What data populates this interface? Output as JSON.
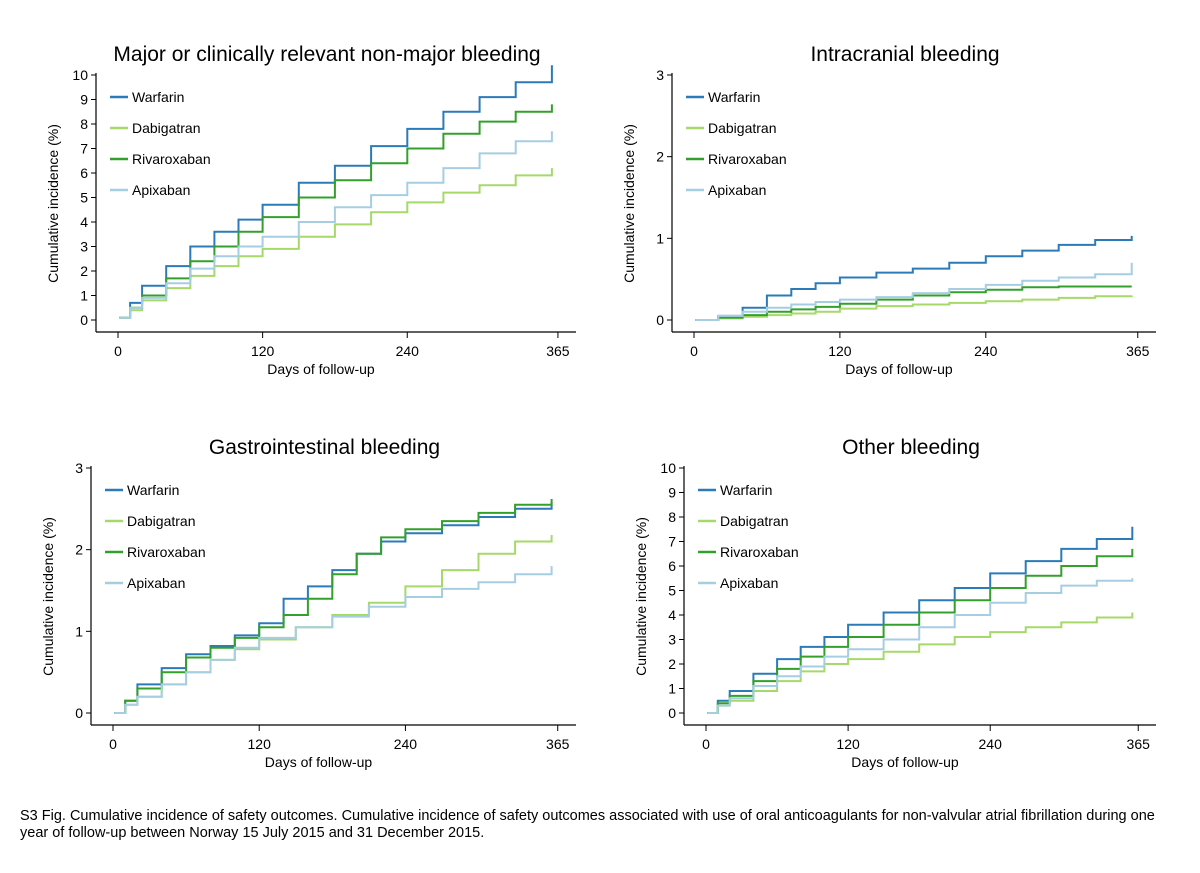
{
  "colors": {
    "warfarin": "#2b7bba",
    "dabigatran": "#a6d96a",
    "rivaroxaban": "#33a02c",
    "apixaban": "#a6cee3"
  },
  "chart_data": [
    {
      "type": "line",
      "title": "Major or clinically relevant non-major bleeding",
      "xlabel": "Days of follow-up",
      "ylabel": "Cumulative incidence (%)",
      "xlim": [
        0,
        365
      ],
      "ylim": [
        0,
        10
      ],
      "xticks": [
        "0",
        "120",
        "240",
        "365"
      ],
      "yticks": [
        "0",
        "1",
        "2",
        "3",
        "4",
        "5",
        "6",
        "7",
        "8",
        "9",
        "10"
      ],
      "legend_position": "top-left",
      "grid": false,
      "series": [
        {
          "name": "Warfarin",
          "color": "warfarin",
          "x": [
            1,
            10,
            20,
            40,
            60,
            80,
            100,
            120,
            150,
            180,
            210,
            240,
            270,
            300,
            330,
            360
          ],
          "y": [
            0.1,
            0.7,
            1.4,
            2.2,
            3.0,
            3.6,
            4.1,
            4.7,
            5.6,
            6.3,
            7.1,
            7.8,
            8.5,
            9.1,
            9.7,
            10.4
          ]
        },
        {
          "name": "Dabigatran",
          "color": "dabigatran",
          "x": [
            1,
            10,
            20,
            40,
            60,
            80,
            100,
            120,
            150,
            180,
            210,
            240,
            270,
            300,
            330,
            360
          ],
          "y": [
            0.1,
            0.4,
            0.8,
            1.3,
            1.8,
            2.2,
            2.6,
            2.9,
            3.4,
            3.9,
            4.4,
            4.8,
            5.2,
            5.5,
            5.9,
            6.2
          ]
        },
        {
          "name": "Rivaroxaban",
          "color": "rivaroxaban",
          "x": [
            1,
            10,
            20,
            40,
            60,
            80,
            100,
            120,
            150,
            180,
            210,
            240,
            270,
            300,
            330,
            360
          ],
          "y": [
            0.1,
            0.5,
            1.0,
            1.7,
            2.4,
            3.0,
            3.6,
            4.2,
            5.0,
            5.7,
            6.4,
            7.0,
            7.6,
            8.1,
            8.5,
            8.8
          ]
        },
        {
          "name": "Apixaban",
          "color": "apixaban",
          "x": [
            1,
            10,
            20,
            40,
            60,
            80,
            100,
            120,
            150,
            180,
            210,
            240,
            270,
            300,
            330,
            360
          ],
          "y": [
            0.1,
            0.5,
            0.9,
            1.5,
            2.1,
            2.6,
            3.0,
            3.4,
            4.0,
            4.6,
            5.1,
            5.6,
            6.2,
            6.8,
            7.3,
            7.7
          ]
        }
      ]
    },
    {
      "type": "line",
      "title": "Intracranial bleeding",
      "xlabel": "Days of follow-up",
      "ylabel": "Cumulative incidence (%)",
      "xlim": [
        0,
        365
      ],
      "ylim": [
        0,
        3
      ],
      "xticks": [
        "0",
        "120",
        "240",
        "365"
      ],
      "yticks": [
        "0",
        "1",
        "2",
        "3"
      ],
      "legend_position": "top-left",
      "grid": false,
      "series": [
        {
          "name": "Warfarin",
          "color": "warfarin",
          "x": [
            1,
            20,
            40,
            60,
            80,
            100,
            120,
            150,
            180,
            210,
            240,
            270,
            300,
            330,
            360
          ],
          "y": [
            0.0,
            0.05,
            0.15,
            0.3,
            0.38,
            0.45,
            0.52,
            0.58,
            0.63,
            0.7,
            0.78,
            0.85,
            0.92,
            0.98,
            1.03
          ]
        },
        {
          "name": "Dabigatran",
          "color": "dabigatran",
          "x": [
            1,
            20,
            40,
            60,
            80,
            100,
            120,
            150,
            180,
            210,
            240,
            270,
            300,
            330,
            360
          ],
          "y": [
            0.0,
            0.02,
            0.04,
            0.06,
            0.08,
            0.1,
            0.14,
            0.17,
            0.19,
            0.21,
            0.23,
            0.25,
            0.27,
            0.29,
            0.3
          ]
        },
        {
          "name": "Rivaroxaban",
          "color": "rivaroxaban",
          "x": [
            1,
            20,
            40,
            60,
            80,
            100,
            120,
            150,
            180,
            210,
            240,
            270,
            300,
            330,
            360
          ],
          "y": [
            0.0,
            0.03,
            0.06,
            0.1,
            0.13,
            0.16,
            0.2,
            0.25,
            0.3,
            0.34,
            0.37,
            0.4,
            0.41,
            0.41,
            0.41
          ]
        },
        {
          "name": "Apixaban",
          "color": "apixaban",
          "x": [
            1,
            20,
            40,
            60,
            80,
            100,
            120,
            150,
            180,
            210,
            240,
            270,
            300,
            330,
            360
          ],
          "y": [
            0.0,
            0.05,
            0.1,
            0.15,
            0.19,
            0.22,
            0.25,
            0.28,
            0.33,
            0.38,
            0.43,
            0.48,
            0.52,
            0.56,
            0.7
          ]
        }
      ]
    },
    {
      "type": "line",
      "title": "Gastrointestinal bleeding",
      "xlabel": "Days of follow-up",
      "ylabel": "Cumulative incidence (%)",
      "xlim": [
        0,
        365
      ],
      "ylim": [
        0,
        3
      ],
      "xticks": [
        "0",
        "120",
        "240",
        "365"
      ],
      "yticks": [
        "0",
        "1",
        "2",
        "3"
      ],
      "legend_position": "top-left",
      "grid": false,
      "series": [
        {
          "name": "Warfarin",
          "color": "warfarin",
          "x": [
            1,
            10,
            20,
            40,
            60,
            80,
            100,
            120,
            140,
            160,
            180,
            200,
            220,
            240,
            270,
            300,
            330,
            360
          ],
          "y": [
            0.0,
            0.15,
            0.35,
            0.55,
            0.72,
            0.82,
            0.95,
            1.1,
            1.4,
            1.55,
            1.75,
            1.95,
            2.1,
            2.2,
            2.3,
            2.4,
            2.5,
            2.58
          ]
        },
        {
          "name": "Dabigatran",
          "color": "dabigatran",
          "x": [
            1,
            10,
            20,
            40,
            60,
            80,
            100,
            120,
            150,
            180,
            210,
            240,
            270,
            300,
            330,
            360
          ],
          "y": [
            0.0,
            0.1,
            0.2,
            0.35,
            0.5,
            0.65,
            0.78,
            0.9,
            1.05,
            1.2,
            1.35,
            1.55,
            1.75,
            1.95,
            2.1,
            2.18
          ]
        },
        {
          "name": "Rivaroxaban",
          "color": "rivaroxaban",
          "x": [
            1,
            10,
            20,
            40,
            60,
            80,
            100,
            120,
            140,
            160,
            180,
            200,
            220,
            240,
            270,
            300,
            330,
            360
          ],
          "y": [
            0.0,
            0.15,
            0.3,
            0.5,
            0.68,
            0.8,
            0.92,
            1.05,
            1.2,
            1.4,
            1.7,
            1.95,
            2.15,
            2.25,
            2.35,
            2.45,
            2.55,
            2.62
          ]
        },
        {
          "name": "Apixaban",
          "color": "apixaban",
          "x": [
            1,
            10,
            20,
            40,
            60,
            80,
            100,
            120,
            150,
            180,
            210,
            240,
            270,
            300,
            330,
            360
          ],
          "y": [
            0.0,
            0.1,
            0.2,
            0.35,
            0.5,
            0.65,
            0.8,
            0.92,
            1.05,
            1.18,
            1.3,
            1.42,
            1.52,
            1.6,
            1.7,
            1.8
          ]
        }
      ]
    },
    {
      "type": "line",
      "title": "Other bleeding",
      "xlabel": "Days of follow-up",
      "ylabel": "Cumulative incidence (%)",
      "xlim": [
        0,
        365
      ],
      "ylim": [
        0,
        10
      ],
      "xticks": [
        "0",
        "120",
        "240",
        "365"
      ],
      "yticks": [
        "0",
        "1",
        "2",
        "3",
        "4",
        "5",
        "6",
        "7",
        "8",
        "9",
        "10"
      ],
      "legend_position": "top-left",
      "grid": false,
      "series": [
        {
          "name": "Warfarin",
          "color": "warfarin",
          "x": [
            1,
            10,
            20,
            40,
            60,
            80,
            100,
            120,
            150,
            180,
            210,
            240,
            270,
            300,
            330,
            360
          ],
          "y": [
            0.0,
            0.5,
            0.9,
            1.6,
            2.2,
            2.7,
            3.1,
            3.6,
            4.1,
            4.6,
            5.1,
            5.7,
            6.2,
            6.7,
            7.1,
            7.6
          ]
        },
        {
          "name": "Dabigatran",
          "color": "dabigatran",
          "x": [
            1,
            10,
            20,
            40,
            60,
            80,
            100,
            120,
            150,
            180,
            210,
            240,
            270,
            300,
            330,
            360
          ],
          "y": [
            0.0,
            0.3,
            0.5,
            0.9,
            1.3,
            1.7,
            2.0,
            2.2,
            2.5,
            2.8,
            3.1,
            3.3,
            3.5,
            3.7,
            3.9,
            4.1
          ]
        },
        {
          "name": "Rivaroxaban",
          "color": "rivaroxaban",
          "x": [
            1,
            10,
            20,
            40,
            60,
            80,
            100,
            120,
            150,
            180,
            210,
            240,
            270,
            300,
            330,
            360
          ],
          "y": [
            0.0,
            0.4,
            0.7,
            1.3,
            1.8,
            2.3,
            2.7,
            3.1,
            3.6,
            4.1,
            4.6,
            5.1,
            5.6,
            6.0,
            6.4,
            6.7
          ]
        },
        {
          "name": "Apixaban",
          "color": "apixaban",
          "x": [
            1,
            10,
            20,
            40,
            60,
            80,
            100,
            120,
            150,
            180,
            210,
            240,
            270,
            300,
            330,
            360
          ],
          "y": [
            0.0,
            0.3,
            0.6,
            1.1,
            1.5,
            1.9,
            2.3,
            2.6,
            3.0,
            3.5,
            4.0,
            4.5,
            4.9,
            5.2,
            5.4,
            5.5
          ]
        }
      ]
    }
  ],
  "caption": "S3 Fig. Cumulative incidence of safety outcomes. Cumulative incidence of safety outcomes associated with use of oral anticoagulants for non-valvular atrial fibrillation during one year of follow-up between Norway 15 July 2015 and 31 December 2015."
}
